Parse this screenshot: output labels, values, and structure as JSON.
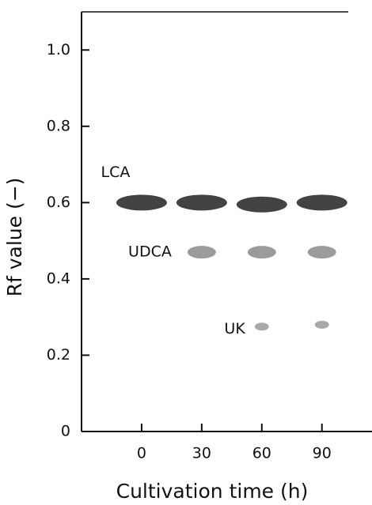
{
  "chart_data": {
    "type": "scatter",
    "xlabel": "Cultivation time (h)",
    "ylabel": "Rf value (−)",
    "x": [
      0,
      30,
      60,
      90
    ],
    "series": [
      {
        "name": "LCA",
        "color": "#222222",
        "values": [
          0.6,
          0.6,
          0.595,
          0.6
        ]
      },
      {
        "name": "UDCA",
        "color": "#8a8a8a",
        "values": [
          null,
          0.47,
          0.47,
          0.47
        ]
      },
      {
        "name": "UK",
        "color": "#9a9a9a",
        "values": [
          null,
          null,
          0.275,
          0.28
        ]
      }
    ],
    "xlim": [
      -30,
      115
    ],
    "xticks": [
      0,
      30,
      60,
      90
    ],
    "ylim": [
      0,
      1.1
    ],
    "yticks": [
      0,
      0.2,
      0.4,
      0.6,
      0.8,
      {
        "value": 1,
        "label": "1.0"
      }
    ]
  }
}
